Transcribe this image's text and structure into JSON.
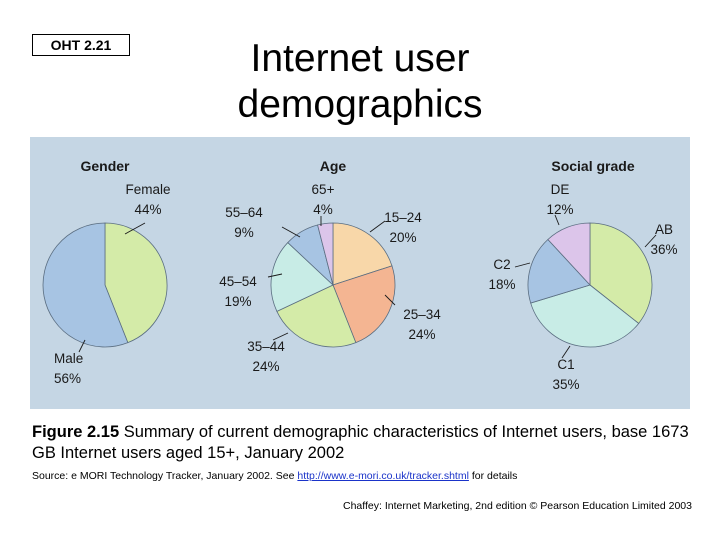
{
  "slide": {
    "badge": "OHT 2.21",
    "title_line1": "Internet user",
    "title_line2": "demographics"
  },
  "chart_data": [
    {
      "type": "pie",
      "title": "Gender",
      "slices": [
        {
          "label": "Female",
          "value": 44,
          "value_label": "44%",
          "color": "#d4eba8"
        },
        {
          "label": "Male",
          "value": 56,
          "value_label": "56%",
          "color": "#a7c4e3"
        }
      ]
    },
    {
      "type": "pie",
      "title": "Age",
      "slices": [
        {
          "label": "15–24",
          "value": 20,
          "value_label": "20%",
          "color": "#f8d7a9"
        },
        {
          "label": "25–34",
          "value": 24,
          "value_label": "24%",
          "color": "#f4b592"
        },
        {
          "label": "35–44",
          "value": 24,
          "value_label": "24%",
          "color": "#d4eba8"
        },
        {
          "label": "45–54",
          "value": 19,
          "value_label": "19%",
          "color": "#c8ece6"
        },
        {
          "label": "55–64",
          "value": 9,
          "value_label": "9%",
          "color": "#a7c4e3"
        },
        {
          "label": "65+",
          "value": 4,
          "value_label": "4%",
          "color": "#dcc5ea"
        }
      ]
    },
    {
      "type": "pie",
      "title": "Social grade",
      "slices": [
        {
          "label": "AB",
          "value": 36,
          "value_label": "36%",
          "color": "#d4eba8"
        },
        {
          "label": "C1",
          "value": 35,
          "value_label": "35%",
          "color": "#c8ece6"
        },
        {
          "label": "C2",
          "value": 18,
          "value_label": "18%",
          "color": "#a7c4e3"
        },
        {
          "label": "DE",
          "value": 12,
          "value_label": "12%",
          "color": "#dcc5ea"
        }
      ]
    }
  ],
  "caption": {
    "figure_label": "Figure 2.15",
    "text": " Summary of current demographic characteristics of Internet users, base 1673 GB Internet users aged 15+, January 2002"
  },
  "source": {
    "prefix": "Source: e MORI Technology Tracker, January 2002. See ",
    "link": "http://www.e-mori.co.uk/tracker.shtml",
    "suffix": " for details"
  },
  "credit": "Chaffey: Internet Marketing, 2nd edition © Pearson Education Limited 2003"
}
